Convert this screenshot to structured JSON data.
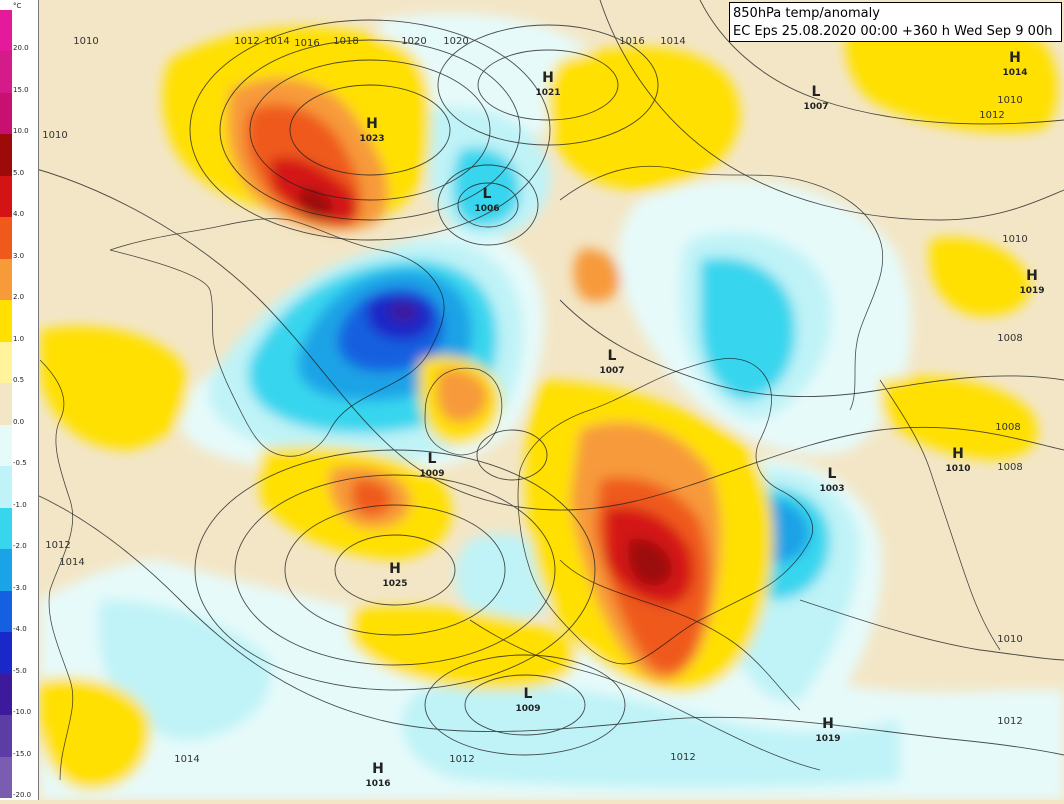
{
  "title": {
    "line1": "850hPa temp/anomaly",
    "line2": "EC Eps 25.08.2020 00:00 +360 h Wed Sep 9 00h"
  },
  "legend": {
    "unit": "°C",
    "bands": [
      {
        "label": "20.0",
        "color": "#e51a9a"
      },
      {
        "label": "15.0",
        "color": "#d51a8a"
      },
      {
        "label": "10.0",
        "color": "#c81070"
      },
      {
        "label": "5.0",
        "color": "#9c0a0a"
      },
      {
        "label": "4.0",
        "color": "#d41414"
      },
      {
        "label": "3.0",
        "color": "#ef5a1c"
      },
      {
        "label": "2.0",
        "color": "#f79a3a"
      },
      {
        "label": "1.0",
        "color": "#ffe000"
      },
      {
        "label": "0.5",
        "color": "#fff49a"
      },
      {
        "label": "0.0",
        "color": "#f3e6c6"
      },
      {
        "label": "-0.5",
        "color": "#e6fafa"
      },
      {
        "label": "-1.0",
        "color": "#bff3f7"
      },
      {
        "label": "-2.0",
        "color": "#38d6ee"
      },
      {
        "label": "-3.0",
        "color": "#1aa3e6"
      },
      {
        "label": "-4.0",
        "color": "#1460e0"
      },
      {
        "label": "-5.0",
        "color": "#1a28c8"
      },
      {
        "label": "-10.0",
        "color": "#3d1a9c"
      },
      {
        "label": "-15.0",
        "color": "#5c3da6"
      },
      {
        "label": "-20.0",
        "color": "#7a5cb0"
      }
    ]
  },
  "pressure_centers": [
    {
      "type": "H",
      "value": "1023"
    },
    {
      "type": "H",
      "value": "1021"
    },
    {
      "type": "L",
      "value": "1007"
    },
    {
      "type": "H",
      "value": "1014"
    },
    {
      "type": "L",
      "value": "1006"
    },
    {
      "type": "L",
      "value": "1007"
    },
    {
      "type": "L",
      "value": "1009"
    },
    {
      "type": "H",
      "value": "1025"
    },
    {
      "type": "L",
      "value": "1009"
    },
    {
      "type": "L",
      "value": "1003"
    },
    {
      "type": "H",
      "value": "1010"
    },
    {
      "type": "H",
      "value": "1019"
    },
    {
      "type": "H",
      "value": "1019"
    },
    {
      "type": "H",
      "value": "1016"
    }
  ],
  "isobar_labels": [
    "1010",
    "1010",
    "1012",
    "1014",
    "1016",
    "1018",
    "1020",
    "1020",
    "1016",
    "1014",
    "1010",
    "1012",
    "1008",
    "1008",
    "1008",
    "1010",
    "1012",
    "1012",
    "1014",
    "1012",
    "1012",
    "1014",
    "1010"
  ]
}
